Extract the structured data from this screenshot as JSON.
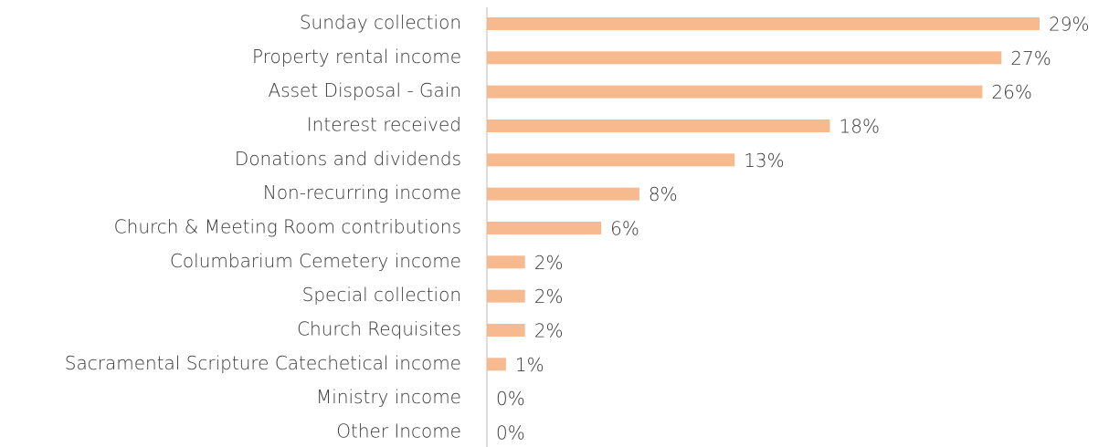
{
  "chart_data": {
    "type": "bar",
    "orientation": "horizontal",
    "categories": [
      "Sunday collection",
      "Property rental income",
      "Asset Disposal - Gain",
      "Interest received",
      "Donations and dividends",
      "Non-recurring income",
      "Church & Meeting Room contributions",
      "Columbarium Cemetery income",
      "Special collection",
      "Church Requisites",
      "Sacramental Scripture Catechetical income",
      "Ministry income",
      "Other Income"
    ],
    "values": [
      29,
      27,
      26,
      18,
      13,
      8,
      6,
      2,
      2,
      2,
      1,
      0,
      0
    ],
    "value_labels": [
      "29%",
      "27%",
      "26%",
      "18%",
      "13%",
      "8%",
      "6%",
      "2%",
      "2%",
      "2%",
      "1%",
      "0%",
      "0%"
    ],
    "color": "#f7b98e"
  }
}
